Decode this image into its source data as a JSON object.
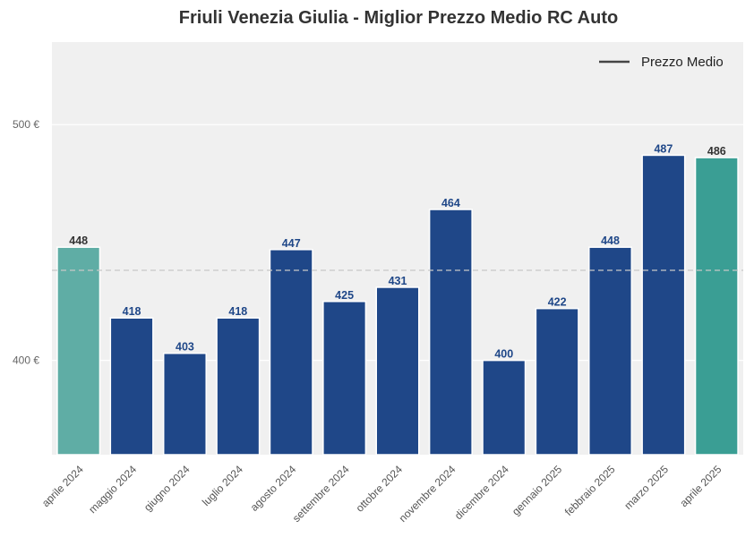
{
  "chart_data": {
    "type": "bar",
    "title": "Friuli Venezia Giulia - Miglior Prezzo Medio RC Auto",
    "categories": [
      "aprile 2024",
      "maggio 2024",
      "giugno 2024",
      "luglio 2024",
      "agosto 2024",
      "settembre 2024",
      "ottobre 2024",
      "novembre 2024",
      "dicembre 2024",
      "gennaio 2025",
      "febbraio 2025",
      "marzo 2025",
      "aprile 2025"
    ],
    "values": [
      448,
      418,
      403,
      418,
      447,
      425,
      431,
      464,
      400,
      422,
      448,
      487,
      486
    ],
    "value_labels": [
      "448",
      "418",
      "403",
      "418",
      "447",
      "425",
      "431",
      "464",
      "400",
      "422",
      "448",
      "487",
      "486"
    ],
    "y_ticks": [
      400,
      500
    ],
    "y_tick_labels": [
      "400 €",
      "500 €"
    ],
    "ylim": [
      360,
      535
    ],
    "mean_line": 438.2,
    "legend": {
      "label": "Prezzo Medio",
      "position": "top-right"
    },
    "grid": true,
    "colors": {
      "default_bar": "#1f4788",
      "first_bar": "#5fada5",
      "last_bar": "#3a9e94",
      "value_label_default": "#1f4788",
      "value_label_highlight": "#333333",
      "plot_background": "#f0f0f0",
      "mean_line": "#c8c8c8"
    }
  }
}
